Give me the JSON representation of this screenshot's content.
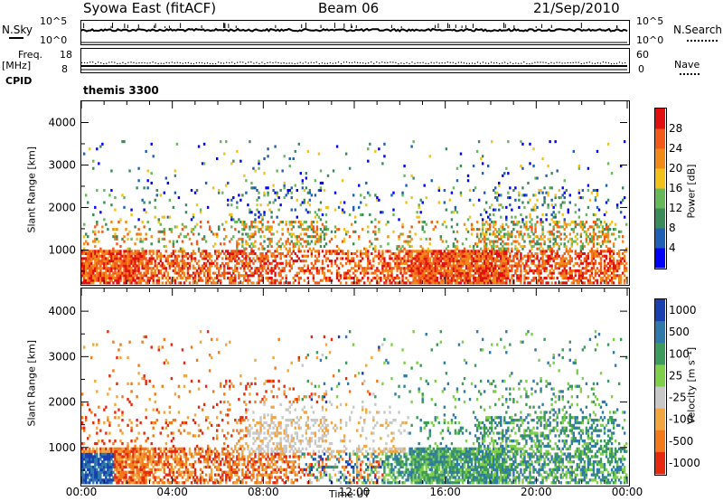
{
  "header": {
    "title": "Syowa East (fitACF)",
    "beam": "Beam 06",
    "date": "21/Sep/2010"
  },
  "noise_panel": {
    "left_label": "N.Sky",
    "left_ticks": [
      "10^5",
      "10^0"
    ],
    "right_label": "N.Search",
    "right_ticks": [
      "10^5",
      "10^0"
    ]
  },
  "freq_panel": {
    "left_label_1": "Freq.",
    "left_label_2": "[MHz]",
    "left_ticks": [
      "18",
      "8"
    ],
    "right_label": "Nave",
    "right_ticks": [
      "60",
      "0"
    ],
    "cpid_label": "CPID",
    "cpid_value": "themis 3300"
  },
  "chart_data": [
    {
      "type": "heatmap",
      "title": "",
      "ylabel": "Slant Range [km]",
      "xlabel": "",
      "yticks": [
        "1000",
        "2000",
        "3000",
        "4000"
      ],
      "ylim": [
        200,
        4500
      ],
      "colorbar_label": "Power [dB]",
      "colorbar_ticks": [
        "4",
        "8",
        "12",
        "16",
        "20",
        "24",
        "28"
      ],
      "colorbar_colors": [
        "#0000ff",
        "#1f5fb4",
        "#3b8a5a",
        "#66b85a",
        "#f2c21a",
        "#f28a1a",
        "#f25a1a",
        "#e01010"
      ]
    },
    {
      "type": "heatmap",
      "title": "",
      "ylabel": "Slant Range [km]",
      "xlabel": "Time UT",
      "xticks": [
        "00:00",
        "04:00",
        "08:00",
        "12:00",
        "16:00",
        "20:00",
        "00:00"
      ],
      "yticks": [
        "1000",
        "2000",
        "3000",
        "4000"
      ],
      "ylim": [
        200,
        4500
      ],
      "colorbar_label": "Velocity [m s⁻¹]",
      "colorbar_ticks": [
        "1000",
        "500",
        "100",
        "25",
        "-25",
        "-100",
        "-500",
        "-1000"
      ],
      "colorbar_colors": [
        "#1a3fb0",
        "#2f7aa8",
        "#3c9a5c",
        "#7fcf4a",
        "#c8c8c8",
        "#f2a640",
        "#f27a1a",
        "#e62a10"
      ]
    }
  ]
}
